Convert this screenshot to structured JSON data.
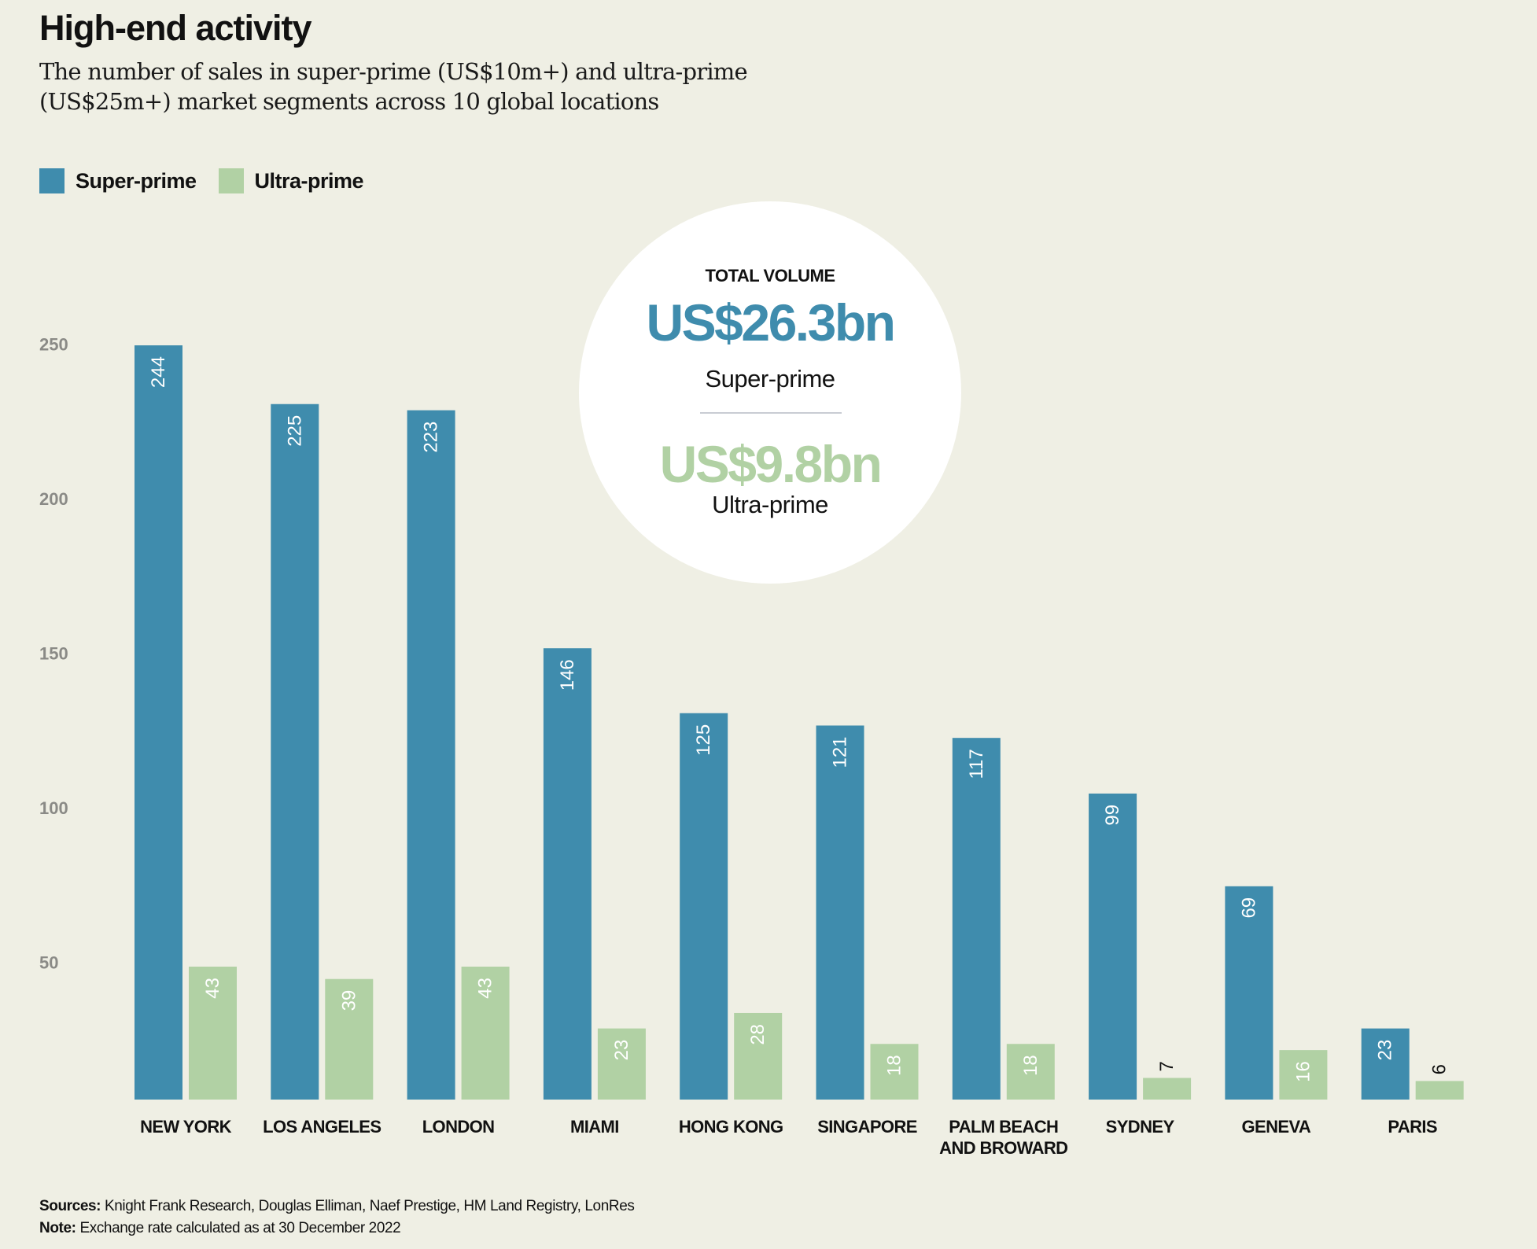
{
  "header": {
    "title": "High-end activity",
    "subtitle": "The number of sales in super-prime (US$10m+) and ultra-prime (US$25m+) market segments across 10 global locations"
  },
  "legend": [
    {
      "label": "Super-prime",
      "color": "#3f8cad"
    },
    {
      "label": "Ultra-prime",
      "color": "#b1d1a4"
    }
  ],
  "total_volume": {
    "heading": "TOTAL VOLUME",
    "super_prime_value": "US$26.3bn",
    "super_prime_label": "Super-prime",
    "ultra_prime_value": "US$9.8bn",
    "ultra_prime_label": "Ultra-prime"
  },
  "footer": {
    "sources_label": "Sources:",
    "sources_text": " Knight Frank Research, Douglas Elliman, Naef Prestige, HM Land Registry, LonRes",
    "note_label": "Note:",
    "note_text": " Exchange rate calculated as at 30 December 2022"
  },
  "colors": {
    "super_prime": "#3f8cad",
    "ultra_prime": "#b1d1a4",
    "background": "#efefe4",
    "tick_label": "#8a8a86",
    "category_label": "#111111"
  },
  "chart_data": {
    "type": "bar",
    "title": "High-end activity",
    "subtitle": "The number of sales in super-prime (US$10m+) and ultra-prime (US$25m+) market segments across 10 global locations",
    "xlabel": "",
    "ylabel": "",
    "ylim": [
      0,
      250
    ],
    "yticks": [
      50,
      100,
      150,
      200,
      250
    ],
    "grid": false,
    "legend_position": "top-left",
    "categories": [
      [
        "NEW YORK"
      ],
      [
        "LOS ANGELES"
      ],
      [
        "LONDON"
      ],
      [
        "MIAMI"
      ],
      [
        "HONG KONG"
      ],
      [
        "SINGAPORE"
      ],
      [
        "PALM BEACH",
        "AND BROWARD"
      ],
      [
        "SYDNEY"
      ],
      [
        "GENEVA"
      ],
      [
        "PARIS"
      ]
    ],
    "series": [
      {
        "name": "Super-prime",
        "color": "#3f8cad",
        "values": [
          244,
          225,
          223,
          146,
          125,
          121,
          117,
          99,
          69,
          23
        ]
      },
      {
        "name": "Ultra-prime",
        "color": "#b1d1a4",
        "values": [
          43,
          39,
          43,
          23,
          28,
          18,
          18,
          7,
          16,
          6
        ]
      }
    ]
  }
}
